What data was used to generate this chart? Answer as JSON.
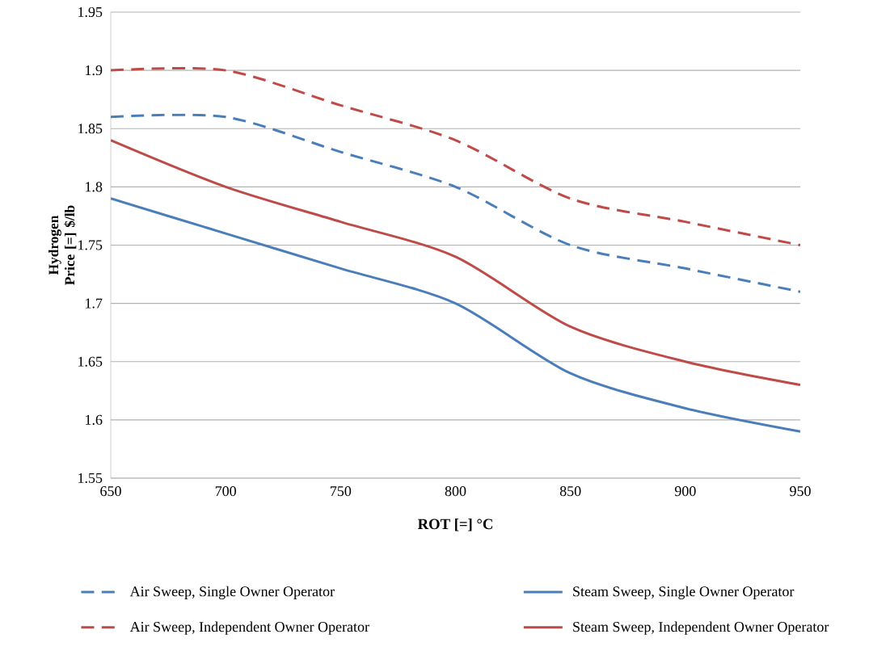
{
  "chart_data": {
    "type": "line",
    "xlabel": "ROT [=] °C",
    "ylabel": "Hydrogen Price [=] $/lb",
    "x": [
      650,
      700,
      750,
      800,
      850,
      900,
      950
    ],
    "series": [
      {
        "name": "Air Sweep, Single  Owner Operator",
        "color": "#4a7ebb",
        "line_style": "dashed",
        "values": [
          1.86,
          1.86,
          1.83,
          1.8,
          1.75,
          1.73,
          1.71
        ]
      },
      {
        "name": "Steam Sweep, Single Owner Operator",
        "color": "#4a7ebb",
        "line_style": "solid",
        "values": [
          1.79,
          1.76,
          1.73,
          1.7,
          1.64,
          1.61,
          1.59
        ]
      },
      {
        "name": "Air Sweep, Independent Owner Operator",
        "color": "#be4b48",
        "line_style": "dashed",
        "values": [
          1.9,
          1.9,
          1.87,
          1.84,
          1.79,
          1.77,
          1.75
        ]
      },
      {
        "name": "Steam Sweep, Independent Owner Operator",
        "color": "#be4b48",
        "line_style": "solid",
        "values": [
          1.84,
          1.8,
          1.77,
          1.74,
          1.68,
          1.65,
          1.63
        ]
      }
    ],
    "xlim": [
      650,
      950
    ],
    "xticks": [
      650,
      700,
      750,
      800,
      850,
      900,
      950
    ],
    "ylim": [
      1.55,
      1.95
    ],
    "yticks": [
      1.55,
      1.6,
      1.65,
      1.7,
      1.75,
      1.8,
      1.85,
      1.9,
      1.95
    ],
    "grid": "y",
    "legend": "bottom",
    "marker": "none"
  }
}
